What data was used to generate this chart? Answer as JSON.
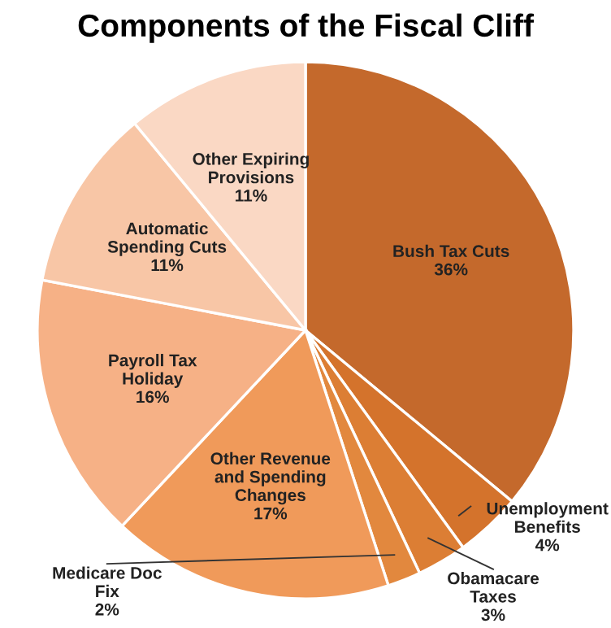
{
  "chart_data": {
    "type": "pie",
    "title": "Components of the Fiscal Cliff",
    "categories": [
      "Bush Tax Cuts",
      "Unemployment Benefits",
      "Obamacare Taxes",
      "Medicare Doc Fix",
      "Other Revenue and Spending Changes",
      "Payroll Tax Holiday",
      "Automatic Spending Cuts",
      "Other Expiring Provisions"
    ],
    "values": [
      36,
      4,
      3,
      2,
      17,
      16,
      11,
      11
    ],
    "value_labels": [
      "36%",
      "4%",
      "3%",
      "2%",
      "17%",
      "16%",
      "11%",
      "11%"
    ],
    "colors": [
      "#c4692c",
      "#d4732c",
      "#dc7e34",
      "#e2883e",
      "#f09a5a",
      "#f6b186",
      "#f8c6a6",
      "#fad8c4"
    ]
  }
}
